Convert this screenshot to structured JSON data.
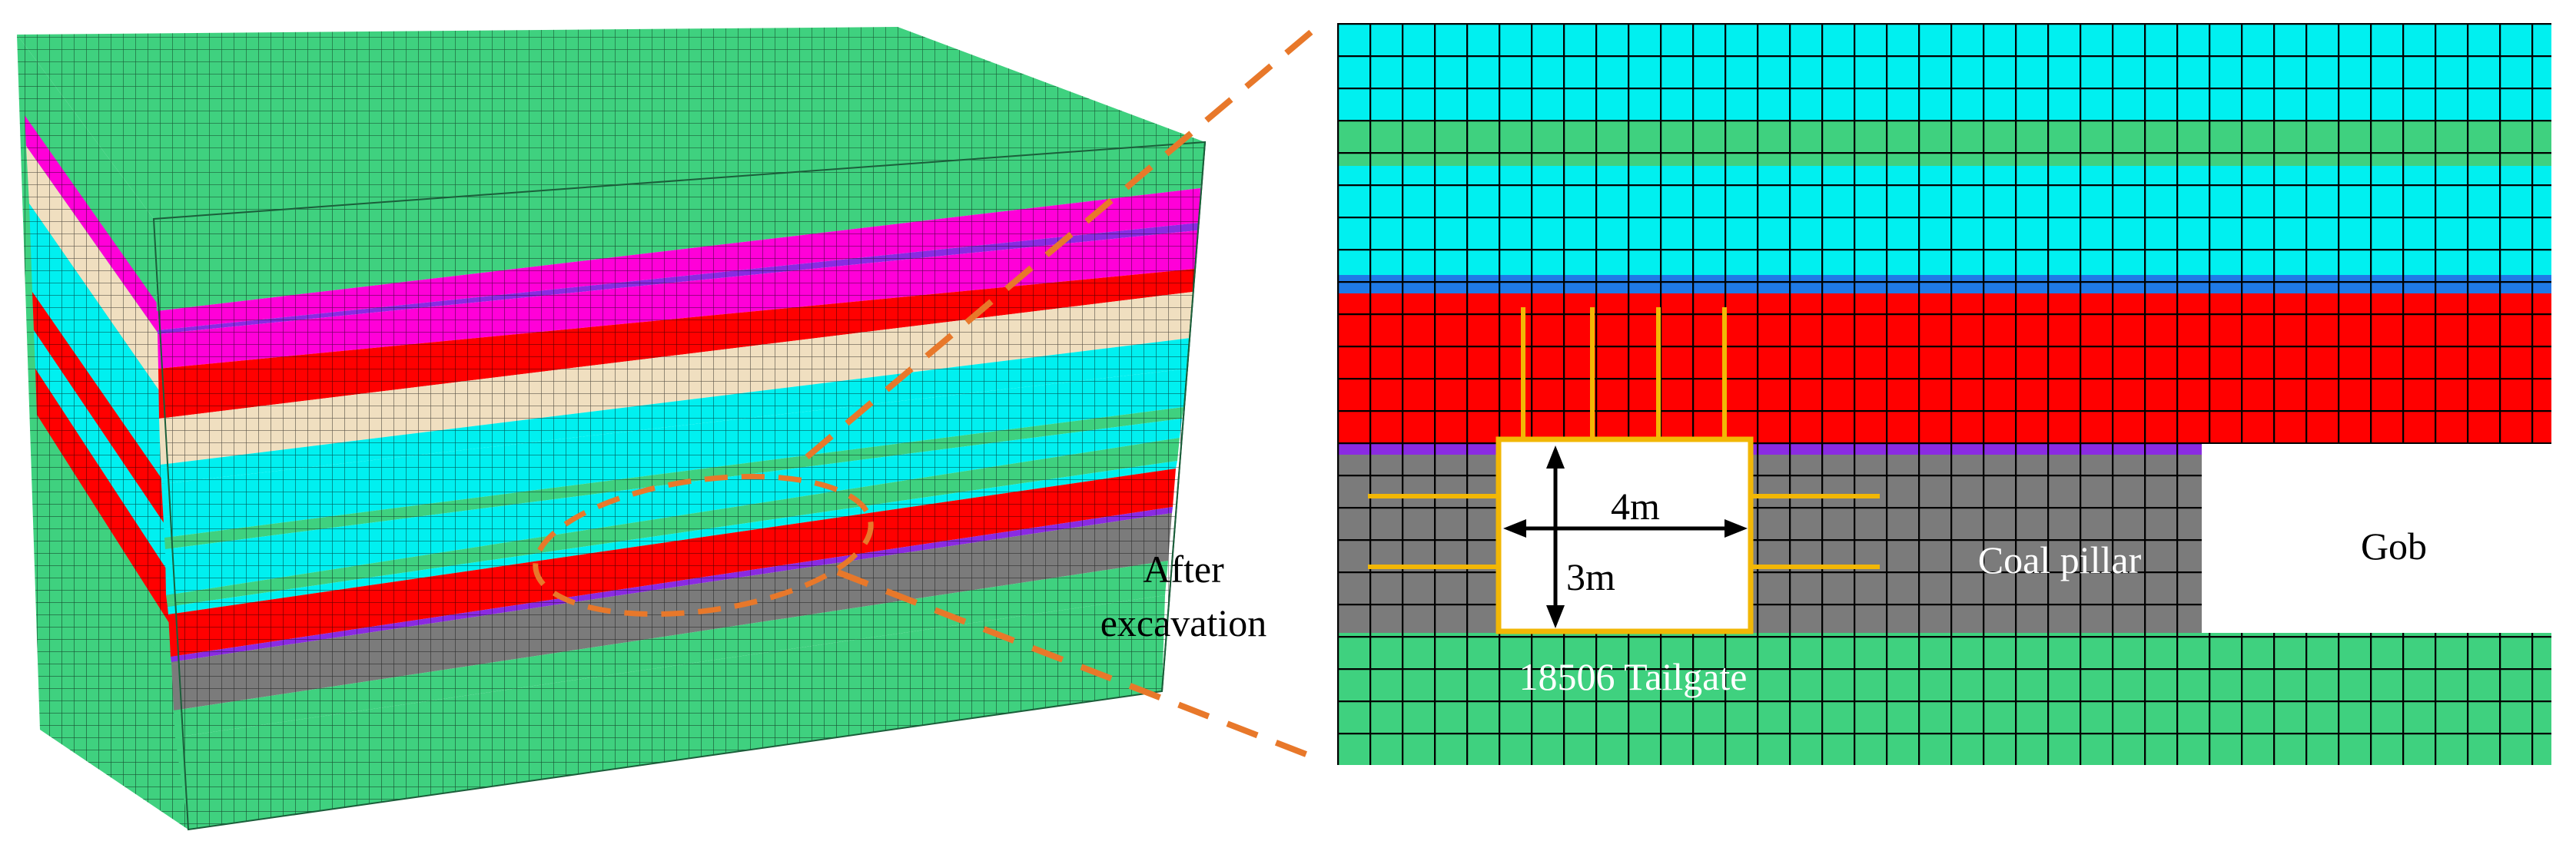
{
  "labels": {
    "after_line1": "After",
    "after_line2": "excavation",
    "width_dim": "4m",
    "height_dim": "3m",
    "coal_pillar": "Coal pillar",
    "gob": "Gob",
    "tailgate": "18506 Tailgate"
  },
  "colors": {
    "green": "#3fd17f",
    "cyan": "#00f0f0",
    "blue": "#1f7ae6",
    "red": "#ff0000",
    "magenta": "#ff00d8",
    "beige": "#f0dfc0",
    "purple": "#8a2be2",
    "gray": "#7b7b7b",
    "bolt": "#f2b705",
    "callout": "#e8782a"
  }
}
